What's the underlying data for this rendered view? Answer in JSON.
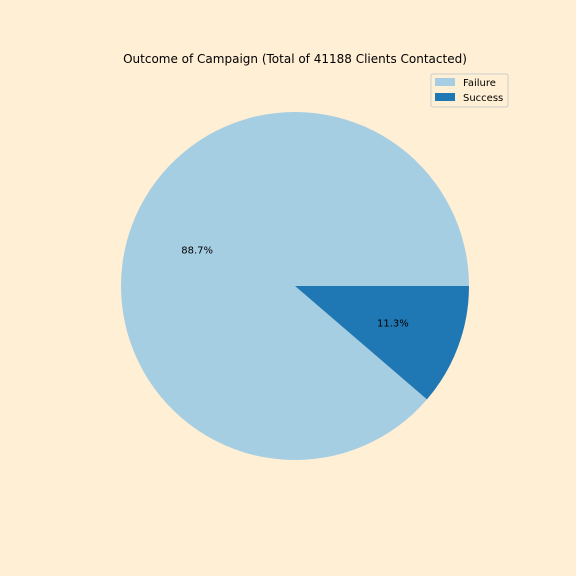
{
  "chart_data": {
    "type": "pie",
    "title": "Outcome of Campaign (Total of 41188 Clients Contacted)",
    "categories": [
      "Failure",
      "Success"
    ],
    "values": [
      88.7,
      11.3
    ],
    "value_labels": [
      "88.7%",
      "11.3%"
    ],
    "colors": [
      "#a6cee3",
      "#1f78b4"
    ],
    "start_angle_deg": 0,
    "direction": "counterclockwise",
    "legend_placement": "top-right"
  }
}
